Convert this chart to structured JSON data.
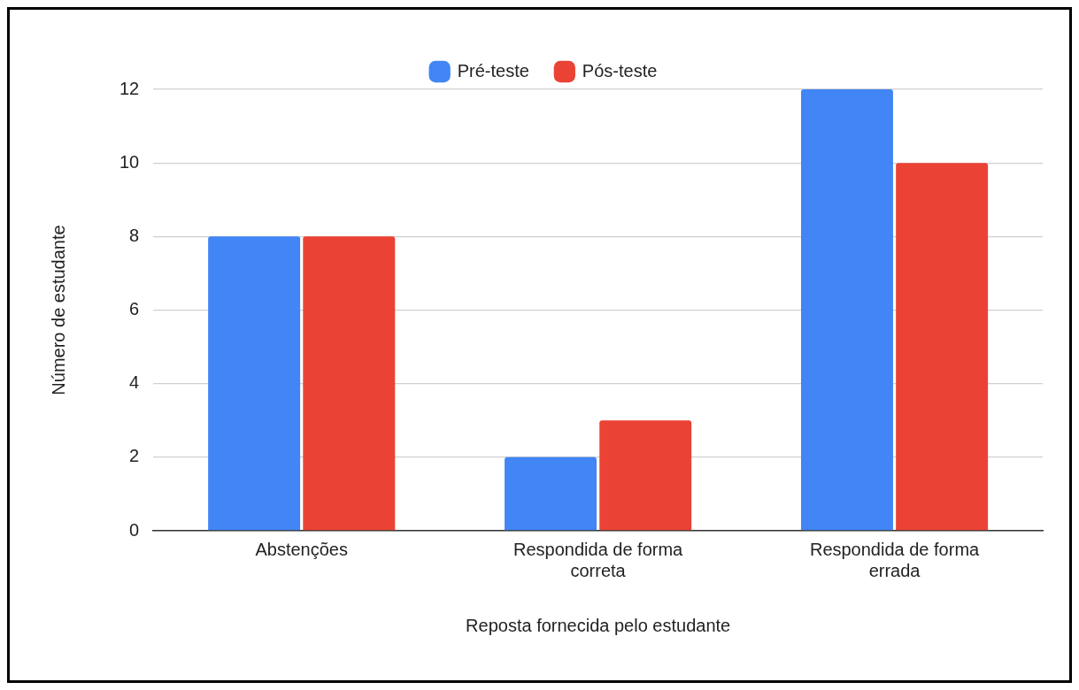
{
  "chart_data": {
    "type": "bar",
    "xlabel": "Reposta fornecida pelo estudante",
    "ylabel": "Número de estudante",
    "categories": [
      "Abstenções",
      "Respondida de forma correta",
      "Respondida de forma errada"
    ],
    "series": [
      {
        "name": "Pré-teste",
        "color": "#4285f4",
        "values": [
          8,
          2,
          12
        ]
      },
      {
        "name": "Pós-teste",
        "color": "#ea4335",
        "values": [
          8,
          3,
          10
        ]
      }
    ],
    "ylim": [
      0,
      12
    ],
    "yticks": [
      0,
      2,
      4,
      6,
      8,
      10,
      12
    ],
    "grid": "y",
    "legend": "top"
  }
}
